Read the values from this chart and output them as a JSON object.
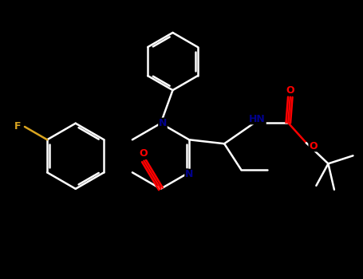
{
  "background_color": "#000000",
  "bond_color": "#ffffff",
  "atom_colors": {
    "O": "#ff0000",
    "N": "#00008b",
    "F": "#daa520",
    "C": "#ffffff"
  },
  "figsize": [
    4.55,
    3.5
  ],
  "dpi": 100
}
